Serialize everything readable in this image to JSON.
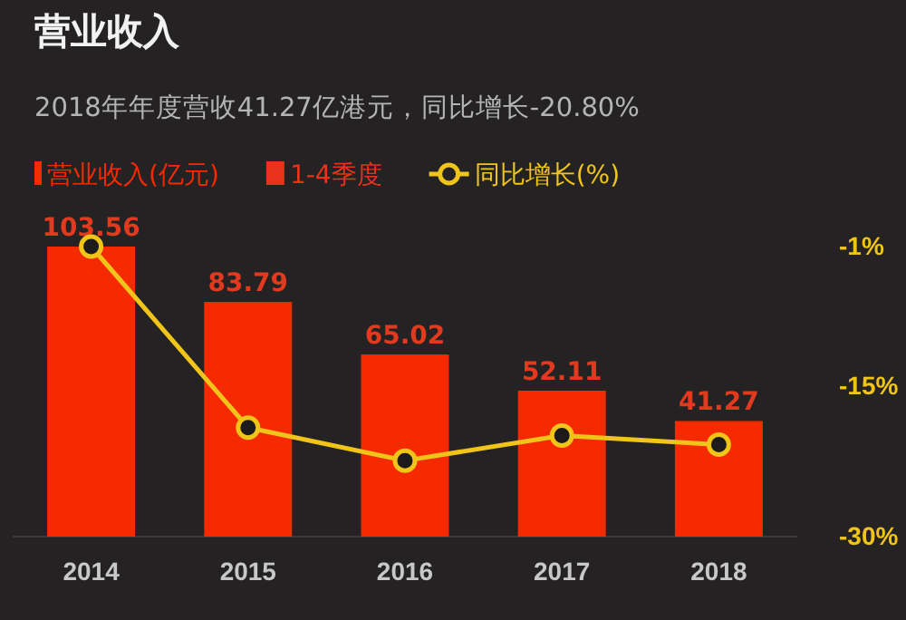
{
  "chart_data": {
    "type": "bar",
    "title": "营业收入",
    "subtitle": "2018年年度营收41.27亿港元，同比增长-20.80%",
    "categories": [
      "2014",
      "2015",
      "2016",
      "2017",
      "2018"
    ],
    "series": [
      {
        "name": "营业收入(亿元)",
        "color": "#f52a00",
        "values": [
          103.56,
          83.79,
          65.02,
          52.11,
          41.27
        ],
        "value_labels": [
          "103.56",
          "83.79",
          "65.02",
          "52.11",
          "41.27"
        ]
      },
      {
        "name": "1-4季度",
        "color": "#e8321a",
        "values": [
          null,
          null,
          null,
          null,
          null
        ]
      },
      {
        "name": "同比增长(%)",
        "type": "line",
        "axis": "y2",
        "color": "#f0c419",
        "values": [
          -1,
          -19.1,
          -22.4,
          -19.9,
          -20.8
        ]
      }
    ],
    "y2lim": [
      -30,
      -1
    ],
    "y2ticks": [
      {
        "value": -1,
        "label": "-1%"
      },
      {
        "value": -15,
        "label": "-15%"
      },
      {
        "value": -30,
        "label": "-30%"
      }
    ],
    "marker": "circle",
    "legend": "top left",
    "grid": false
  }
}
